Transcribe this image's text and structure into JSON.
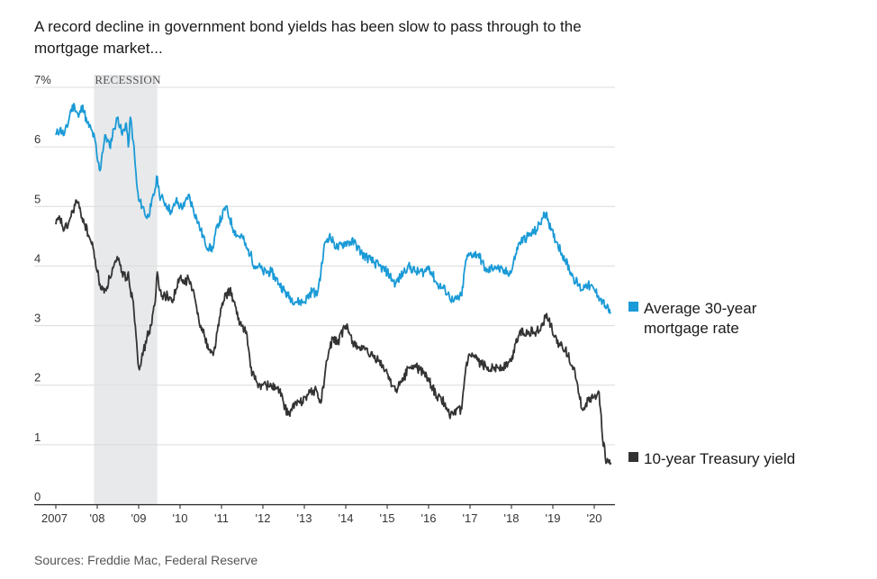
{
  "title": "A record decline in government bond yields has been slow to pass through to the mortgage market...",
  "source": "Sources: Freddie Mac, Federal Reserve",
  "chart_data": {
    "type": "line",
    "title": "A record decline in government bond yields has been slow to pass through to the mortgage market...",
    "xlabel": "",
    "ylabel": "",
    "xlim": [
      2007.0,
      2020.5
    ],
    "ylim": [
      0,
      7
    ],
    "y_ticks": [
      {
        "value": 0,
        "label": "0"
      },
      {
        "value": 1,
        "label": "1"
      },
      {
        "value": 2,
        "label": "2"
      },
      {
        "value": 3,
        "label": "3"
      },
      {
        "value": 4,
        "label": "4"
      },
      {
        "value": 5,
        "label": "5"
      },
      {
        "value": 6,
        "label": "6"
      },
      {
        "value": 7,
        "label": "7%"
      }
    ],
    "x_ticks": [
      {
        "value": 2007,
        "label": "2007"
      },
      {
        "value": 2008,
        "label": "'08"
      },
      {
        "value": 2009,
        "label": "'09"
      },
      {
        "value": 2010,
        "label": "'10"
      },
      {
        "value": 2011,
        "label": "'11"
      },
      {
        "value": 2012,
        "label": "'12"
      },
      {
        "value": 2013,
        "label": "'13"
      },
      {
        "value": 2014,
        "label": "'14"
      },
      {
        "value": 2015,
        "label": "'15"
      },
      {
        "value": 2016,
        "label": "'16"
      },
      {
        "value": 2017,
        "label": "'17"
      },
      {
        "value": 2018,
        "label": "'18"
      },
      {
        "value": 2019,
        "label": "'19"
      },
      {
        "value": 2020,
        "label": "'20"
      }
    ],
    "recession": {
      "label": "RECESSION",
      "start": 2007.92,
      "end": 2009.45
    },
    "grid": true,
    "series": [
      {
        "name": "Average 30-year mortgage rate",
        "color": "#1a9ad6",
        "x": [
          2007.0,
          2007.1,
          2007.2,
          2007.3,
          2007.35,
          2007.45,
          2007.55,
          2007.65,
          2007.75,
          2007.85,
          2007.95,
          2008.0,
          2008.07,
          2008.12,
          2008.2,
          2008.3,
          2008.4,
          2008.5,
          2008.6,
          2008.7,
          2008.75,
          2008.8,
          2008.87,
          2008.95,
          2009.0,
          2009.1,
          2009.2,
          2009.3,
          2009.4,
          2009.45,
          2009.5,
          2009.6,
          2009.7,
          2009.8,
          2009.9,
          2010.0,
          2010.1,
          2010.2,
          2010.3,
          2010.4,
          2010.5,
          2010.6,
          2010.7,
          2010.8,
          2010.9,
          2011.0,
          2011.1,
          2011.2,
          2011.3,
          2011.4,
          2011.5,
          2011.6,
          2011.7,
          2011.8,
          2011.9,
          2012.0,
          2012.2,
          2012.4,
          2012.6,
          2012.8,
          2012.9,
          2013.0,
          2013.2,
          2013.3,
          2013.4,
          2013.5,
          2013.6,
          2013.7,
          2013.8,
          2014.0,
          2014.2,
          2014.4,
          2014.6,
          2014.8,
          2015.0,
          2015.2,
          2015.4,
          2015.5,
          2015.7,
          2015.9,
          2016.0,
          2016.2,
          2016.4,
          2016.5,
          2016.6,
          2016.8,
          2016.9,
          2017.0,
          2017.2,
          2017.4,
          2017.6,
          2017.8,
          2018.0,
          2018.1,
          2018.2,
          2018.4,
          2018.6,
          2018.75,
          2018.85,
          2018.95,
          2019.1,
          2019.3,
          2019.5,
          2019.7,
          2019.8,
          2020.0,
          2020.1,
          2020.2,
          2020.3,
          2020.4
        ],
        "values": [
          6.2,
          6.3,
          6.2,
          6.4,
          6.6,
          6.7,
          6.5,
          6.7,
          6.4,
          6.3,
          6.1,
          5.8,
          5.6,
          5.9,
          6.2,
          6.0,
          6.3,
          6.5,
          6.2,
          6.4,
          6.0,
          6.5,
          6.1,
          5.4,
          5.1,
          5.0,
          4.8,
          5.0,
          5.3,
          5.5,
          5.2,
          5.1,
          5.0,
          4.9,
          5.1,
          5.0,
          5.0,
          5.2,
          5.0,
          4.8,
          4.6,
          4.4,
          4.3,
          4.3,
          4.7,
          4.8,
          5.0,
          4.8,
          4.6,
          4.5,
          4.5,
          4.3,
          4.2,
          4.0,
          4.0,
          3.9,
          3.9,
          3.7,
          3.5,
          3.4,
          3.4,
          3.4,
          3.6,
          3.5,
          3.9,
          4.4,
          4.5,
          4.4,
          4.3,
          4.4,
          4.4,
          4.2,
          4.1,
          4.0,
          3.9,
          3.7,
          3.9,
          4.0,
          3.9,
          3.9,
          4.0,
          3.7,
          3.6,
          3.5,
          3.4,
          3.5,
          4.1,
          4.2,
          4.2,
          3.9,
          4.0,
          3.9,
          3.9,
          4.2,
          4.4,
          4.5,
          4.6,
          4.8,
          4.9,
          4.6,
          4.4,
          4.1,
          3.8,
          3.6,
          3.7,
          3.6,
          3.5,
          3.4,
          3.3,
          3.2
        ]
      },
      {
        "name": "10-year Treasury yield",
        "color": "#333333",
        "x": [
          2007.0,
          2007.1,
          2007.2,
          2007.3,
          2007.4,
          2007.5,
          2007.6,
          2007.7,
          2007.8,
          2007.9,
          2008.0,
          2008.1,
          2008.2,
          2008.3,
          2008.4,
          2008.5,
          2008.6,
          2008.7,
          2008.75,
          2008.8,
          2008.87,
          2008.92,
          2009.0,
          2009.1,
          2009.2,
          2009.3,
          2009.4,
          2009.45,
          2009.5,
          2009.6,
          2009.7,
          2009.8,
          2009.9,
          2010.0,
          2010.1,
          2010.2,
          2010.3,
          2010.4,
          2010.5,
          2010.6,
          2010.7,
          2010.8,
          2010.9,
          2011.0,
          2011.1,
          2011.2,
          2011.3,
          2011.4,
          2011.5,
          2011.6,
          2011.7,
          2011.8,
          2011.9,
          2012.0,
          2012.2,
          2012.4,
          2012.5,
          2012.6,
          2012.8,
          2012.9,
          2013.0,
          2013.2,
          2013.3,
          2013.4,
          2013.5,
          2013.6,
          2013.7,
          2013.8,
          2014.0,
          2014.2,
          2014.4,
          2014.6,
          2014.8,
          2015.0,
          2015.2,
          2015.4,
          2015.5,
          2015.7,
          2015.9,
          2016.0,
          2016.2,
          2016.4,
          2016.5,
          2016.6,
          2016.8,
          2016.9,
          2017.0,
          2017.2,
          2017.4,
          2017.6,
          2017.8,
          2018.0,
          2018.1,
          2018.2,
          2018.4,
          2018.6,
          2018.75,
          2018.85,
          2018.95,
          2019.1,
          2019.3,
          2019.5,
          2019.6,
          2019.7,
          2019.8,
          2020.0,
          2020.1,
          2020.15,
          2020.2,
          2020.3,
          2020.4
        ],
        "values": [
          4.7,
          4.8,
          4.6,
          4.7,
          4.9,
          5.1,
          4.9,
          4.7,
          4.5,
          4.3,
          3.9,
          3.6,
          3.6,
          3.8,
          4.0,
          4.1,
          3.9,
          3.8,
          3.9,
          3.6,
          3.4,
          3.0,
          2.3,
          2.5,
          2.8,
          3.0,
          3.4,
          3.9,
          3.6,
          3.5,
          3.5,
          3.4,
          3.6,
          3.8,
          3.7,
          3.8,
          3.6,
          3.3,
          3.0,
          2.8,
          2.6,
          2.5,
          2.9,
          3.3,
          3.5,
          3.6,
          3.4,
          3.1,
          3.0,
          2.9,
          2.3,
          2.1,
          2.0,
          2.0,
          2.0,
          1.9,
          1.7,
          1.5,
          1.7,
          1.7,
          1.8,
          1.9,
          1.9,
          1.7,
          2.2,
          2.6,
          2.8,
          2.7,
          3.0,
          2.7,
          2.6,
          2.5,
          2.4,
          2.2,
          1.9,
          2.1,
          2.3,
          2.3,
          2.2,
          2.1,
          1.8,
          1.7,
          1.5,
          1.5,
          1.6,
          2.3,
          2.5,
          2.4,
          2.3,
          2.3,
          2.3,
          2.4,
          2.7,
          2.9,
          2.9,
          2.9,
          3.0,
          3.2,
          3.0,
          2.7,
          2.6,
          2.3,
          2.0,
          1.6,
          1.7,
          1.8,
          1.9,
          1.6,
          1.1,
          0.7,
          0.7
        ]
      }
    ],
    "legend": "right"
  }
}
